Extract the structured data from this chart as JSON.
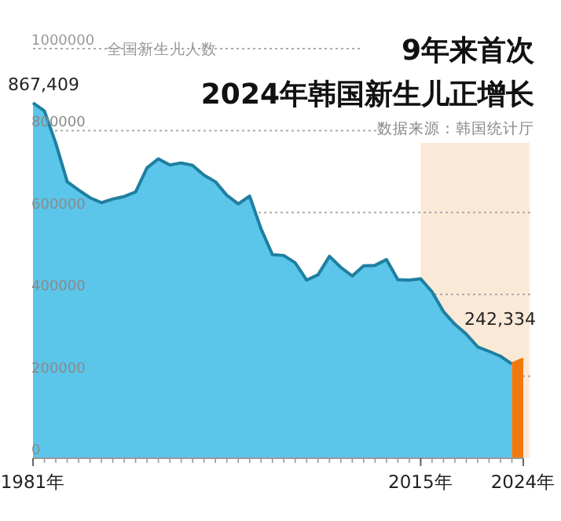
{
  "chart_data": {
    "type": "area",
    "title": "9年来首次",
    "subtitle": "2024年韩国新生儿正增长",
    "ylabel": "全国新生儿人数",
    "annotations": [
      "数据来源：韩国统计厅",
      {
        "text": "867,409",
        "x": 1981,
        "y": 867409
      },
      {
        "text": "242,334",
        "x": 2024,
        "y": 242334
      }
    ],
    "series": [
      {
        "color": "#5bc5ea",
        "x": [
          1981,
          1982,
          1983,
          1984,
          1985,
          1986,
          1987,
          1988,
          1989,
          1990,
          1991,
          1992,
          1993,
          1994,
          1995,
          1996,
          1997,
          1998,
          1999,
          2000,
          2001,
          2002,
          2003,
          2004,
          2005,
          2006,
          2007,
          2008,
          2009,
          2010,
          2011,
          2012,
          2013,
          2014,
          2015,
          2016,
          2017,
          2018,
          2019,
          2020,
          2021,
          2022,
          2023
        ],
        "values": [
          867409,
          848000,
          769000,
          675000,
          655000,
          636000,
          624000,
          633000,
          639000,
          650000,
          709000,
          731000,
          716000,
          721000,
          715000,
          691000,
          675000,
          642000,
          621000,
          640000,
          560000,
          497000,
          495000,
          477000,
          435000,
          448000,
          493000,
          466000,
          445000,
          470000,
          471000,
          485000,
          436000,
          435000,
          438000,
          406000,
          358000,
          327000,
          303000,
          272000,
          261000,
          249000,
          230000
        ]
      },
      {
        "color": "#f07a10",
        "x": [
          2023,
          2024
        ],
        "values": [
          230000,
          242334
        ]
      }
    ],
    "xlim": [
      1981,
      2024
    ],
    "xticks": [
      {
        "value": 1981,
        "label": "1981年"
      },
      {
        "value": 2015,
        "label": "2015年"
      },
      {
        "value": 2024,
        "label": "2024年"
      }
    ],
    "ylim": [
      0,
      1000000
    ],
    "yticks": [
      0,
      200000,
      400000,
      600000,
      800000,
      1000000
    ],
    "bands": [
      {
        "axis": "x",
        "from": 2015,
        "to": 2024,
        "color": "#fbe9d7"
      }
    ],
    "grid": "y"
  }
}
